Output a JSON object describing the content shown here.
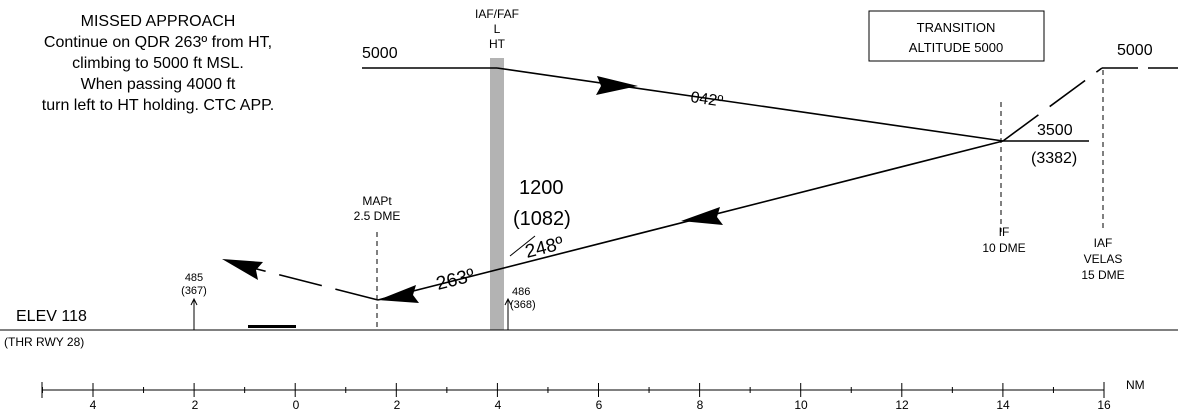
{
  "missed_approach": {
    "title": "MISSED APPROACH",
    "line1": "Continue on QDR 263º from HT,",
    "line2": "climbing to 5000 ft MSL.",
    "line3": "When passing 4000 ft",
    "line4": "turn left to HT holding. CTC APP."
  },
  "iaf_faf": {
    "line1": "IAF/FAF",
    "line2": "L",
    "line3": "HT"
  },
  "transition": {
    "line1": "TRANSITION",
    "line2": "ALTITUDE 5000"
  },
  "altitudes": {
    "initial_left": "5000",
    "initial_right": "5000",
    "if_alt": "3500",
    "if_alt_agl": "(3382)",
    "faf_alt": "1200",
    "faf_alt_agl": "(1082)"
  },
  "courses": {
    "outbound": "042º",
    "inbound": "248º",
    "missed": "263º"
  },
  "fixes": {
    "mapt": {
      "line1": "MAPt",
      "line2": "2.5 DME"
    },
    "if": {
      "line1": "IF",
      "line2": "10 DME"
    },
    "iaf_velas": {
      "line1": "IAF",
      "line2": "VELAS",
      "line3": "15 DME"
    }
  },
  "obstacles": [
    {
      "height": "485",
      "agl": "(367)"
    },
    {
      "height": "486",
      "agl": "(368)"
    }
  ],
  "aerodrome": {
    "elev": "ELEV 118",
    "threshold": "(THR RWY 28)"
  },
  "scale": {
    "unit": "NM",
    "labels": [
      "4",
      "2",
      "0",
      "2",
      "4",
      "6",
      "8",
      "10",
      "12",
      "14",
      "16"
    ]
  }
}
